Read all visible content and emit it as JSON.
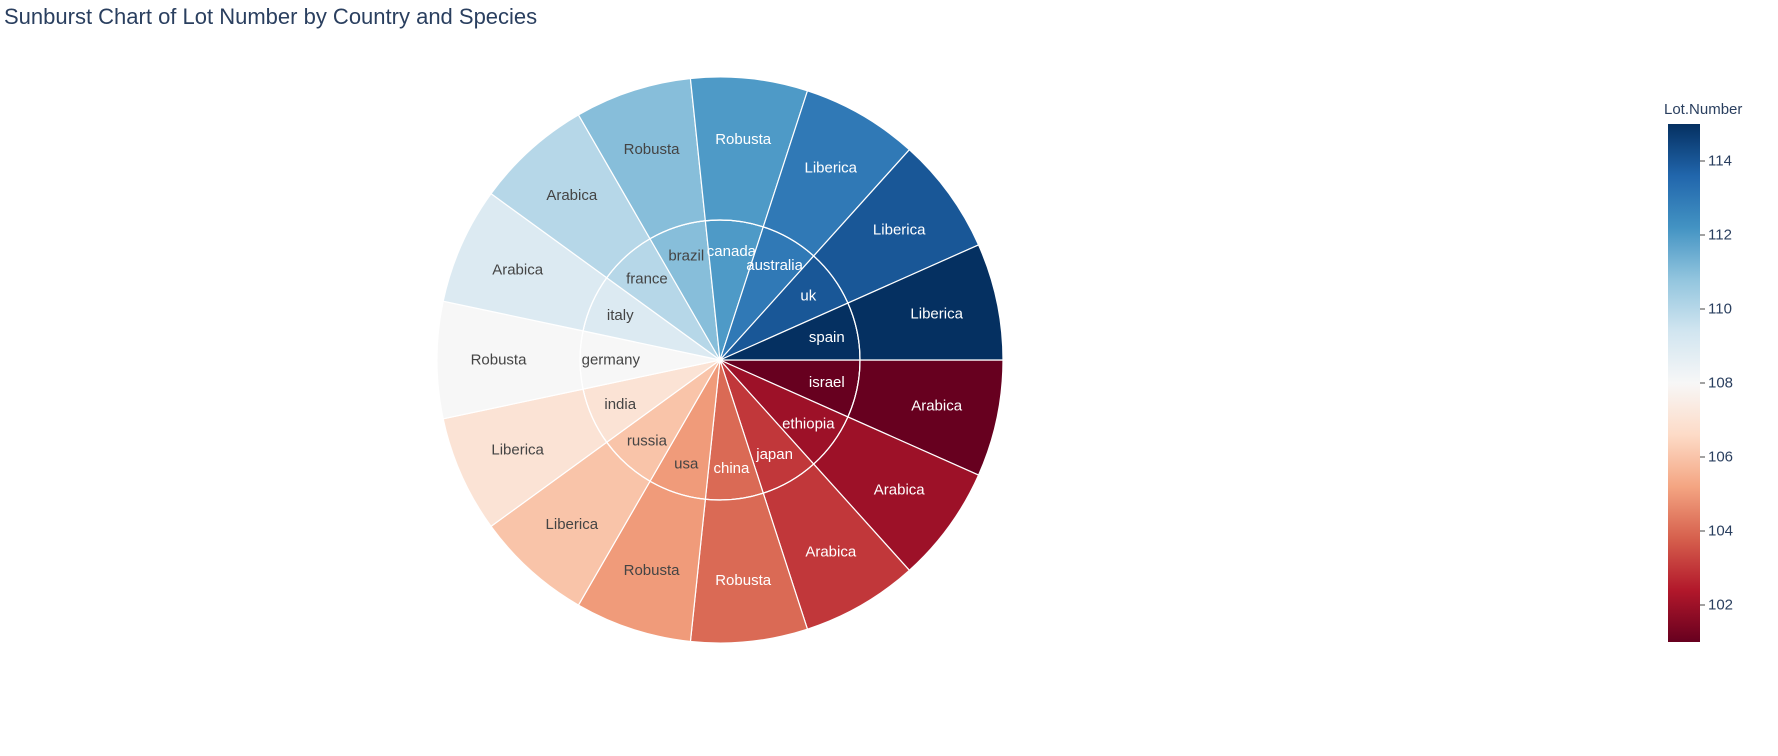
{
  "chart_data": {
    "type": "sunburst",
    "title": "Sunburst Chart of Lot Number by Country and Species",
    "colorbar": {
      "title": "Lot.Number",
      "range": [
        101,
        115
      ],
      "ticks": [
        102,
        104,
        106,
        108,
        110,
        112,
        114
      ],
      "colorscale": "RdBu"
    },
    "countries": [
      {
        "name": "israel",
        "value": 101,
        "children": [
          {
            "name": "Arabica",
            "value": 101
          }
        ]
      },
      {
        "name": "ethiopia",
        "value": 102,
        "children": [
          {
            "name": "Arabica",
            "value": 102
          }
        ]
      },
      {
        "name": "japan",
        "value": 103,
        "children": [
          {
            "name": "Arabica",
            "value": 103
          }
        ]
      },
      {
        "name": "china",
        "value": 104,
        "children": [
          {
            "name": "Robusta",
            "value": 104
          }
        ]
      },
      {
        "name": "usa",
        "value": 105,
        "children": [
          {
            "name": "Robusta",
            "value": 105
          }
        ]
      },
      {
        "name": "russia",
        "value": 106,
        "children": [
          {
            "name": "Liberica",
            "value": 106
          }
        ]
      },
      {
        "name": "india",
        "value": 107,
        "children": [
          {
            "name": "Liberica",
            "value": 107
          }
        ]
      },
      {
        "name": "germany",
        "value": 108,
        "children": [
          {
            "name": "Robusta",
            "value": 108
          }
        ]
      },
      {
        "name": "italy",
        "value": 109,
        "children": [
          {
            "name": "Arabica",
            "value": 109
          }
        ]
      },
      {
        "name": "france",
        "value": 110,
        "children": [
          {
            "name": "Arabica",
            "value": 110
          }
        ]
      },
      {
        "name": "brazil",
        "value": 111,
        "children": [
          {
            "name": "Robusta",
            "value": 111
          }
        ]
      },
      {
        "name": "canada",
        "value": 112,
        "children": [
          {
            "name": "Robusta",
            "value": 112
          }
        ]
      },
      {
        "name": "australia",
        "value": 113,
        "children": [
          {
            "name": "Liberica",
            "value": 113
          }
        ]
      },
      {
        "name": "uk",
        "value": 114,
        "children": [
          {
            "name": "Liberica",
            "value": 114
          }
        ]
      },
      {
        "name": "spain",
        "value": 115,
        "children": [
          {
            "name": "Liberica",
            "value": 115
          }
        ]
      }
    ]
  }
}
